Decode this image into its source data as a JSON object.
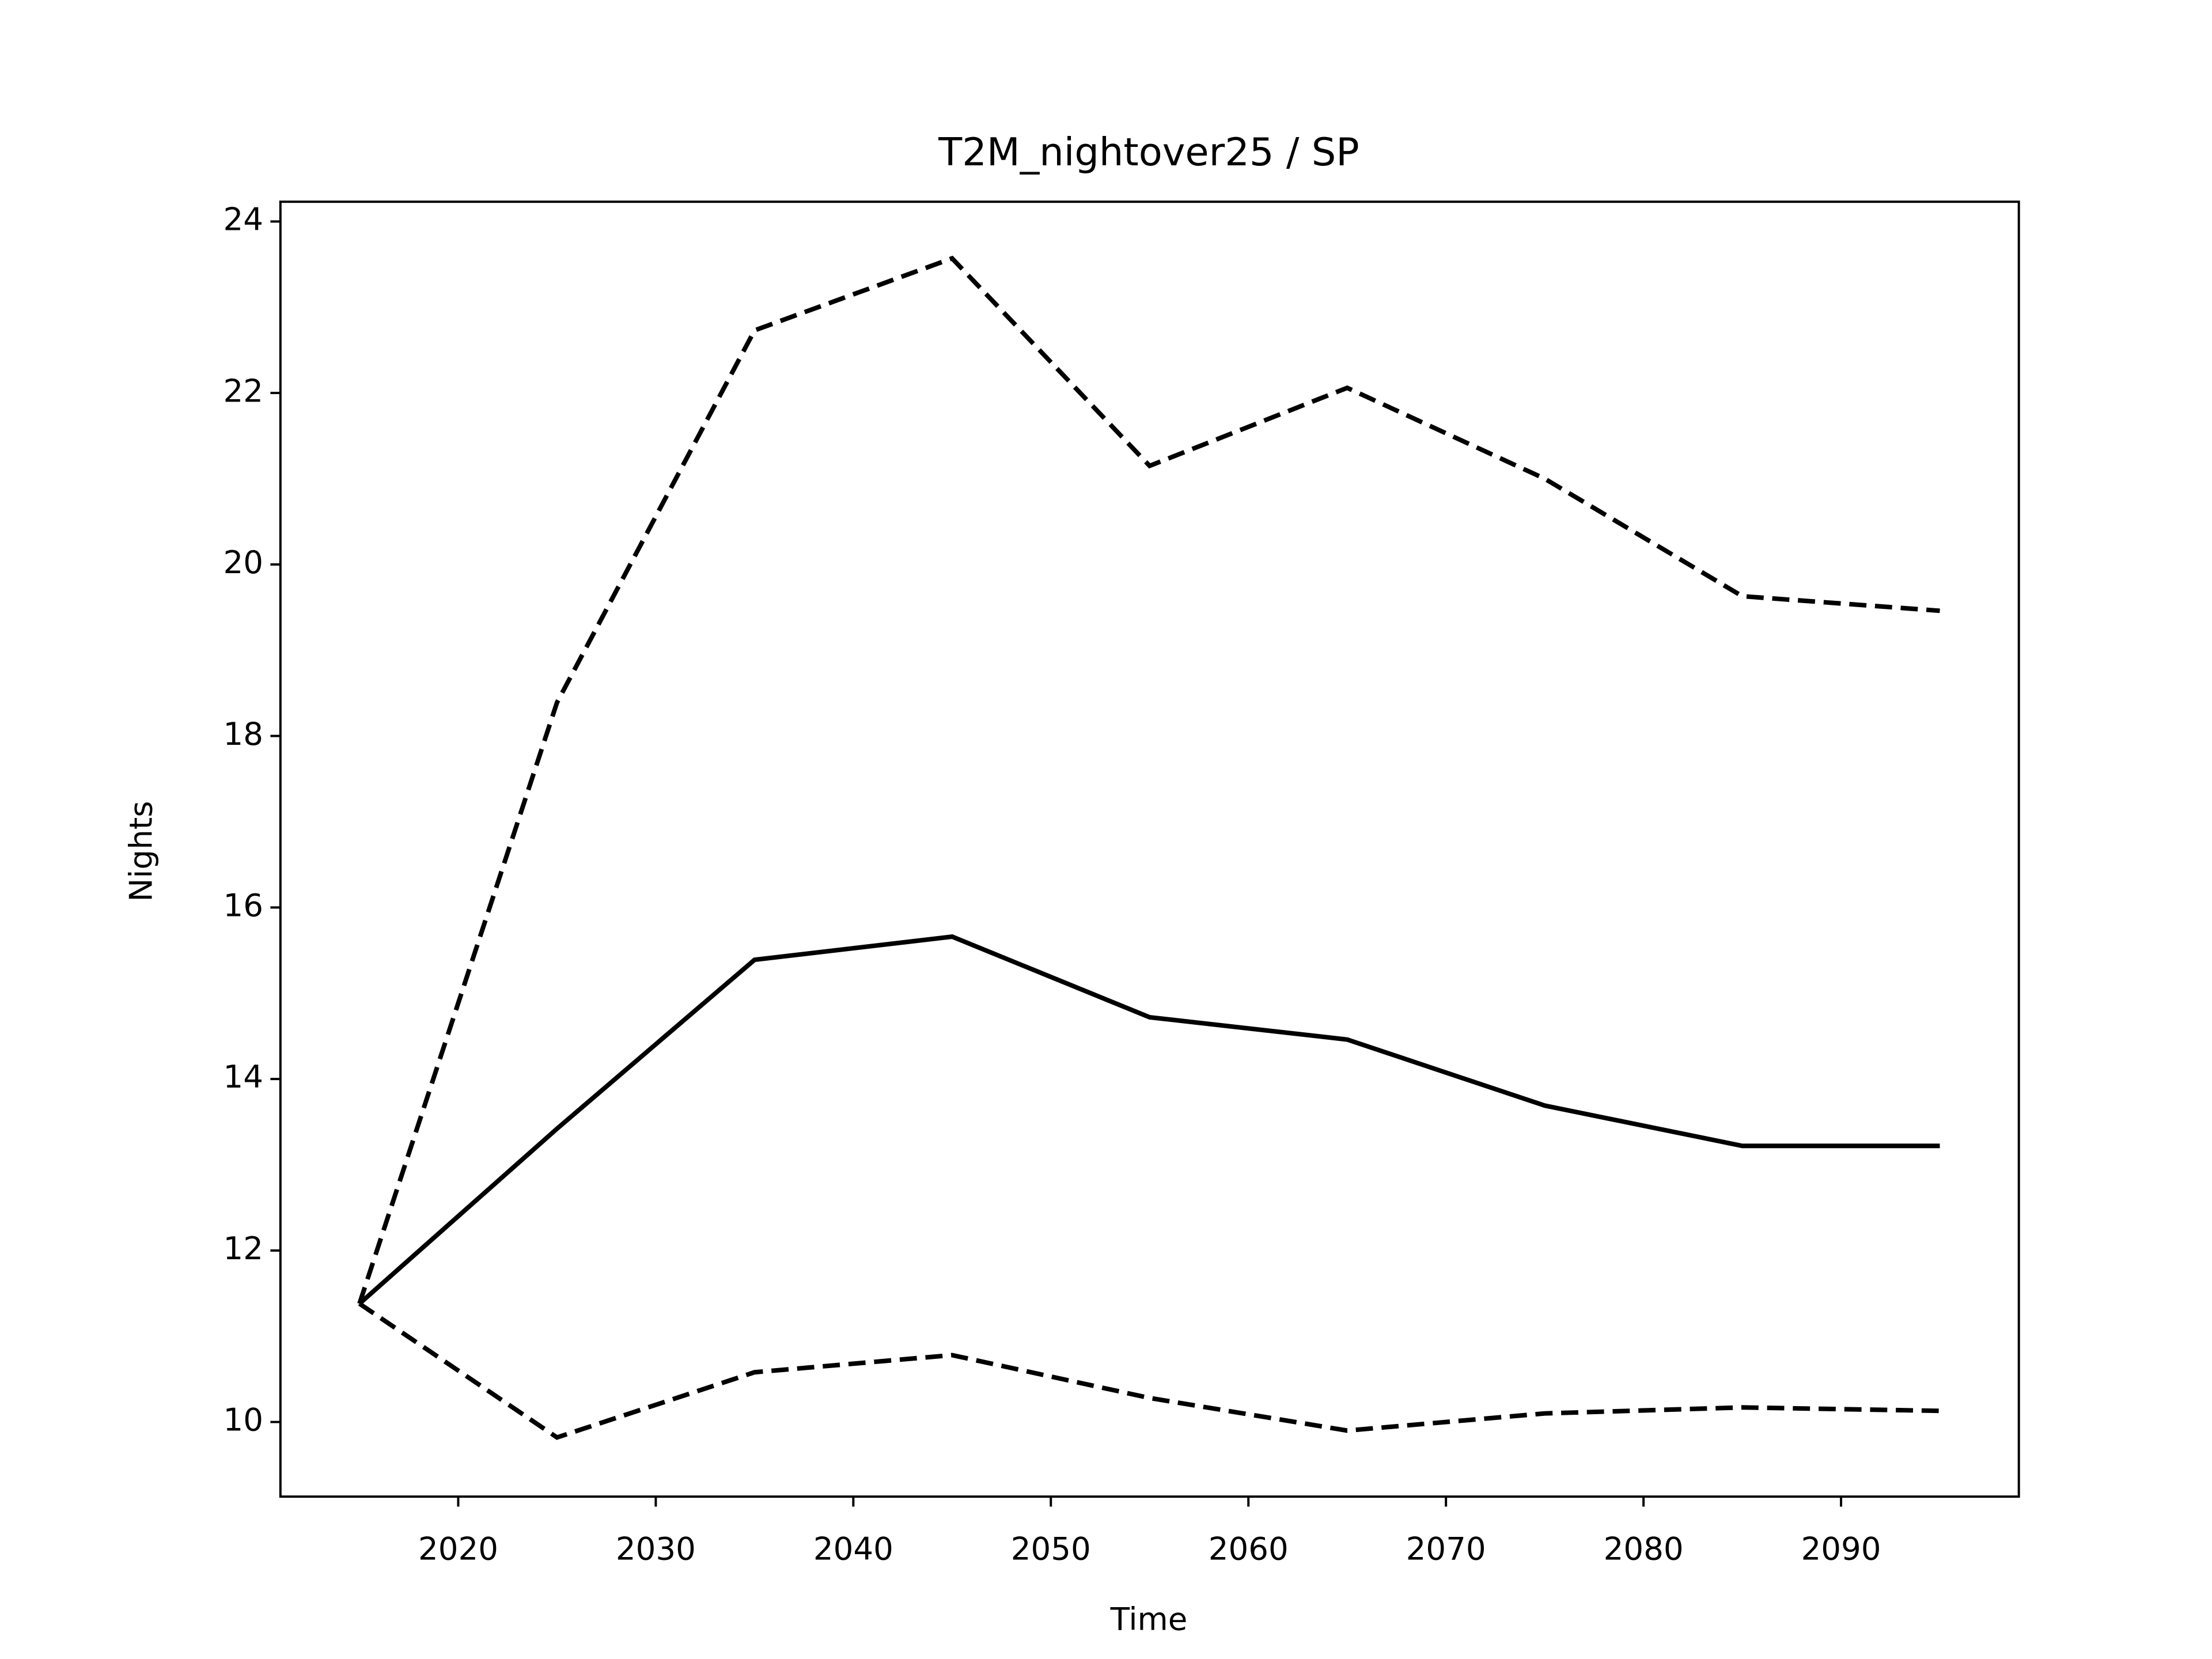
{
  "chart_data": {
    "type": "line",
    "title": "T2M_nightover25 / SP",
    "x_label": "Time",
    "y_label": "Nights",
    "x": [
      2015,
      2025,
      2035,
      2045,
      2055,
      2065,
      2075,
      2085,
      2095
    ],
    "series": [
      {
        "color": "#000000",
        "dash": "solid",
        "values": [
          11.38,
          13.42,
          15.39,
          15.66,
          14.72,
          14.46,
          13.69,
          13.22,
          13.22
        ]
      },
      {
        "color": "#000000",
        "dash": "dashed",
        "values": [
          11.38,
          18.39,
          22.73,
          23.57,
          21.15,
          22.06,
          21.0,
          19.63,
          19.46
        ]
      },
      {
        "color": "#000000",
        "dash": "dashed",
        "values": [
          11.38,
          9.82,
          10.58,
          10.78,
          10.28,
          9.9,
          10.1,
          10.17,
          10.13
        ]
      }
    ],
    "xlim": [
      2011,
      2099
    ],
    "xticks": [
      2020,
      2030,
      2040,
      2050,
      2060,
      2070,
      2080,
      2090
    ],
    "ylim": [
      9.13,
      24.23
    ],
    "yticks": [
      10,
      12,
      14,
      16,
      18,
      20,
      22,
      24
    ],
    "grid": false
  }
}
